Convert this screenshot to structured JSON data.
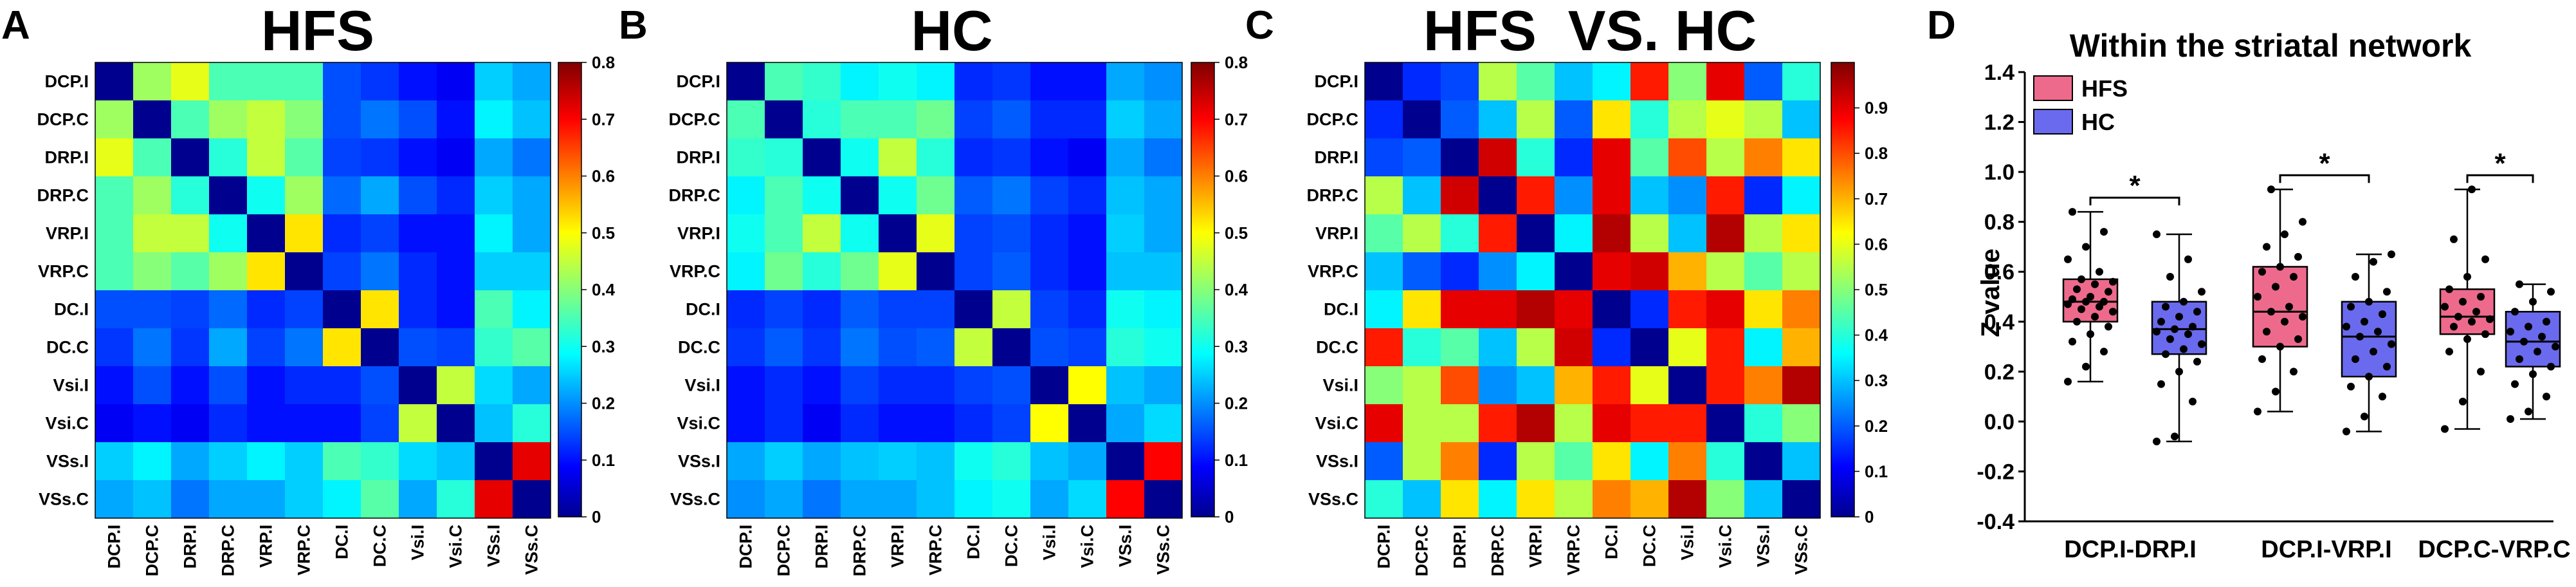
{
  "chart_data": [
    {
      "type": "heatmap",
      "panel": "A",
      "title": "HFS",
      "labels": [
        "DCP.I",
        "DCP.C",
        "DRP.I",
        "DRP.C",
        "VRP.I",
        "VRP.C",
        "DC.I",
        "DC.C",
        "Vsi.I",
        "Vsi.C",
        "VSs.I",
        "VSs.C"
      ],
      "colorbar": {
        "min": 0,
        "max": 0.8,
        "ticks": [
          "0",
          "0.1",
          "0.2",
          "0.3",
          "0.4",
          "0.5",
          "0.6",
          "0.7",
          "0.8"
        ]
      },
      "values": [
        [
          0.0,
          0.42,
          0.48,
          0.35,
          0.35,
          0.35,
          0.15,
          0.13,
          0.1,
          0.08,
          0.25,
          0.22
        ],
        [
          0.42,
          0.0,
          0.35,
          0.42,
          0.45,
          0.4,
          0.15,
          0.18,
          0.15,
          0.1,
          0.28,
          0.24
        ],
        [
          0.48,
          0.35,
          0.0,
          0.32,
          0.45,
          0.36,
          0.14,
          0.13,
          0.1,
          0.08,
          0.22,
          0.18
        ],
        [
          0.35,
          0.42,
          0.32,
          0.0,
          0.3,
          0.42,
          0.17,
          0.22,
          0.15,
          0.12,
          0.25,
          0.22
        ],
        [
          0.35,
          0.45,
          0.45,
          0.3,
          0.0,
          0.52,
          0.12,
          0.14,
          0.1,
          0.1,
          0.28,
          0.22
        ],
        [
          0.35,
          0.4,
          0.36,
          0.42,
          0.52,
          0.0,
          0.14,
          0.18,
          0.12,
          0.1,
          0.25,
          0.25
        ],
        [
          0.15,
          0.15,
          0.14,
          0.17,
          0.12,
          0.14,
          0.0,
          0.52,
          0.12,
          0.1,
          0.35,
          0.28
        ],
        [
          0.13,
          0.18,
          0.13,
          0.22,
          0.14,
          0.18,
          0.52,
          0.0,
          0.15,
          0.14,
          0.33,
          0.36
        ],
        [
          0.1,
          0.15,
          0.1,
          0.15,
          0.1,
          0.12,
          0.12,
          0.15,
          0.0,
          0.45,
          0.26,
          0.22
        ],
        [
          0.08,
          0.1,
          0.08,
          0.12,
          0.1,
          0.1,
          0.1,
          0.14,
          0.45,
          0.0,
          0.24,
          0.32
        ],
        [
          0.25,
          0.28,
          0.22,
          0.25,
          0.28,
          0.25,
          0.35,
          0.33,
          0.26,
          0.24,
          0.0,
          0.72
        ],
        [
          0.22,
          0.24,
          0.18,
          0.22,
          0.22,
          0.25,
          0.28,
          0.36,
          0.22,
          0.32,
          0.72,
          0.0
        ]
      ]
    },
    {
      "type": "heatmap",
      "panel": "B",
      "title": "HC",
      "labels": [
        "DCP.I",
        "DCP.C",
        "DRP.I",
        "DRP.C",
        "VRP.I",
        "VRP.C",
        "DC.I",
        "DC.C",
        "Vsi.I",
        "Vsi.C",
        "VSs.I",
        "VSs.C"
      ],
      "colorbar": {
        "min": 0,
        "max": 0.8,
        "ticks": [
          "0",
          "0.1",
          "0.2",
          "0.3",
          "0.4",
          "0.5",
          "0.6",
          "0.7",
          "0.8"
        ]
      },
      "values": [
        [
          0.0,
          0.35,
          0.33,
          0.28,
          0.3,
          0.28,
          0.12,
          0.13,
          0.1,
          0.1,
          0.22,
          0.2
        ],
        [
          0.35,
          0.0,
          0.32,
          0.35,
          0.35,
          0.38,
          0.14,
          0.16,
          0.12,
          0.12,
          0.25,
          0.22
        ],
        [
          0.33,
          0.32,
          0.0,
          0.3,
          0.45,
          0.32,
          0.12,
          0.13,
          0.1,
          0.08,
          0.22,
          0.18
        ],
        [
          0.28,
          0.35,
          0.3,
          0.0,
          0.3,
          0.38,
          0.16,
          0.18,
          0.14,
          0.12,
          0.24,
          0.22
        ],
        [
          0.3,
          0.35,
          0.45,
          0.3,
          0.0,
          0.48,
          0.14,
          0.15,
          0.12,
          0.1,
          0.25,
          0.22
        ],
        [
          0.28,
          0.38,
          0.32,
          0.38,
          0.48,
          0.0,
          0.14,
          0.16,
          0.12,
          0.1,
          0.24,
          0.24
        ],
        [
          0.12,
          0.14,
          0.12,
          0.16,
          0.14,
          0.14,
          0.0,
          0.45,
          0.14,
          0.12,
          0.3,
          0.28
        ],
        [
          0.13,
          0.16,
          0.13,
          0.18,
          0.15,
          0.16,
          0.45,
          0.0,
          0.15,
          0.14,
          0.32,
          0.3
        ],
        [
          0.1,
          0.12,
          0.1,
          0.14,
          0.12,
          0.12,
          0.14,
          0.15,
          0.0,
          0.5,
          0.24,
          0.22
        ],
        [
          0.1,
          0.12,
          0.08,
          0.12,
          0.1,
          0.1,
          0.12,
          0.14,
          0.5,
          0.0,
          0.22,
          0.26
        ],
        [
          0.22,
          0.25,
          0.22,
          0.24,
          0.25,
          0.24,
          0.3,
          0.32,
          0.24,
          0.22,
          0.0,
          0.7
        ],
        [
          0.2,
          0.22,
          0.18,
          0.22,
          0.22,
          0.24,
          0.28,
          0.3,
          0.22,
          0.26,
          0.7,
          0.0
        ]
      ]
    },
    {
      "type": "heatmap",
      "panel": "C",
      "title": "HFS  VS. HC",
      "labels": [
        "DCP.I",
        "DCP.C",
        "DRP.I",
        "DRP.C",
        "VRP.I",
        "VRP.C",
        "DC.I",
        "DC.C",
        "Vsi.I",
        "Vsi.C",
        "VSs.I",
        "VSs.C"
      ],
      "colorbar": {
        "min": 0,
        "max": 1.0,
        "ticks": [
          "0",
          "0.1",
          "0.2",
          "0.3",
          "0.4",
          "0.5",
          "0.6",
          "0.7",
          "0.8",
          "0.9"
        ]
      },
      "values": [
        [
          0.0,
          0.15,
          0.18,
          0.55,
          0.45,
          0.3,
          0.35,
          0.85,
          0.5,
          0.9,
          0.2,
          0.4
        ],
        [
          0.15,
          0.0,
          0.2,
          0.3,
          0.55,
          0.2,
          0.65,
          0.4,
          0.55,
          0.6,
          0.55,
          0.3
        ],
        [
          0.18,
          0.2,
          0.0,
          0.92,
          0.4,
          0.15,
          0.9,
          0.45,
          0.8,
          0.55,
          0.75,
          0.65
        ],
        [
          0.55,
          0.3,
          0.92,
          0.0,
          0.85,
          0.25,
          0.9,
          0.3,
          0.25,
          0.85,
          0.15,
          0.35
        ],
        [
          0.45,
          0.55,
          0.4,
          0.85,
          0.0,
          0.35,
          0.95,
          0.55,
          0.3,
          0.95,
          0.55,
          0.65
        ],
        [
          0.3,
          0.2,
          0.15,
          0.25,
          0.35,
          0.0,
          0.9,
          0.92,
          0.7,
          0.55,
          0.45,
          0.55
        ],
        [
          0.35,
          0.65,
          0.9,
          0.9,
          0.95,
          0.9,
          0.0,
          0.15,
          0.85,
          0.9,
          0.65,
          0.75
        ],
        [
          0.85,
          0.4,
          0.45,
          0.3,
          0.55,
          0.92,
          0.15,
          0.0,
          0.6,
          0.85,
          0.35,
          0.7
        ],
        [
          0.5,
          0.55,
          0.8,
          0.25,
          0.3,
          0.7,
          0.85,
          0.6,
          0.0,
          0.85,
          0.75,
          0.95
        ],
        [
          0.9,
          0.55,
          0.55,
          0.85,
          0.95,
          0.55,
          0.9,
          0.85,
          0.85,
          0.0,
          0.4,
          0.5
        ],
        [
          0.2,
          0.55,
          0.75,
          0.15,
          0.55,
          0.45,
          0.65,
          0.35,
          0.75,
          0.4,
          0.0,
          0.3
        ],
        [
          0.4,
          0.3,
          0.65,
          0.35,
          0.65,
          0.55,
          0.75,
          0.7,
          0.95,
          0.5,
          0.3,
          0.0
        ]
      ]
    },
    {
      "type": "box",
      "panel": "D",
      "title": "Within the striatal network",
      "ylabel": "Z value",
      "ylim": [
        -0.4,
        1.4
      ],
      "yticks": [
        "-0.4",
        "-0.2",
        "0.0",
        "0.2",
        "0.4",
        "0.6",
        "0.8",
        "1.0",
        "1.2",
        "1.4"
      ],
      "legend": [
        {
          "name": "HFS",
          "color": "#ee6a8c"
        },
        {
          "name": "HC",
          "color": "#6a6aee"
        }
      ],
      "significance": [
        "*",
        "*",
        "*"
      ],
      "groups": [
        {
          "category": "DCP.I-DRP.I",
          "HFS": {
            "min": 0.16,
            "q1": 0.4,
            "median": 0.48,
            "q3": 0.57,
            "max": 0.84,
            "points": [
              0.16,
              0.22,
              0.28,
              0.32,
              0.35,
              0.38,
              0.4,
              0.42,
              0.44,
              0.45,
              0.46,
              0.47,
              0.48,
              0.48,
              0.49,
              0.5,
              0.52,
              0.53,
              0.55,
              0.56,
              0.57,
              0.6,
              0.65,
              0.7,
              0.76,
              0.84
            ]
          },
          "HC": {
            "min": -0.08,
            "q1": 0.27,
            "median": 0.37,
            "q3": 0.48,
            "max": 0.75,
            "points": [
              -0.08,
              -0.06,
              0.08,
              0.15,
              0.2,
              0.24,
              0.27,
              0.29,
              0.31,
              0.33,
              0.35,
              0.36,
              0.37,
              0.38,
              0.4,
              0.42,
              0.44,
              0.46,
              0.48,
              0.52,
              0.58,
              0.65,
              0.75
            ]
          }
        },
        {
          "category": "DCP.I-VRP.I",
          "HFS": {
            "min": 0.04,
            "q1": 0.3,
            "median": 0.44,
            "q3": 0.62,
            "max": 0.93,
            "points": [
              0.04,
              0.12,
              0.2,
              0.25,
              0.3,
              0.33,
              0.36,
              0.4,
              0.42,
              0.44,
              0.46,
              0.5,
              0.54,
              0.58,
              0.6,
              0.62,
              0.66,
              0.7,
              0.75,
              0.8,
              0.93
            ]
          },
          "HC": {
            "min": -0.04,
            "q1": 0.18,
            "median": 0.34,
            "q3": 0.48,
            "max": 0.67,
            "points": [
              -0.04,
              0.02,
              0.1,
              0.14,
              0.18,
              0.22,
              0.25,
              0.28,
              0.31,
              0.34,
              0.36,
              0.38,
              0.4,
              0.43,
              0.46,
              0.48,
              0.52,
              0.58,
              0.64,
              0.67
            ]
          }
        },
        {
          "category": "DCP.C-VRP.C",
          "HFS": {
            "min": -0.03,
            "q1": 0.35,
            "median": 0.42,
            "q3": 0.53,
            "max": 0.93,
            "points": [
              -0.03,
              0.08,
              0.2,
              0.28,
              0.33,
              0.35,
              0.38,
              0.4,
              0.41,
              0.42,
              0.44,
              0.46,
              0.48,
              0.5,
              0.53,
              0.58,
              0.65,
              0.73,
              0.93
            ]
          },
          "HC": {
            "min": 0.01,
            "q1": 0.22,
            "median": 0.32,
            "q3": 0.44,
            "max": 0.55,
            "points": [
              0.01,
              0.04,
              0.1,
              0.15,
              0.19,
              0.22,
              0.25,
              0.28,
              0.3,
              0.32,
              0.34,
              0.36,
              0.38,
              0.4,
              0.44,
              0.48,
              0.52,
              0.55
            ]
          }
        }
      ]
    }
  ]
}
